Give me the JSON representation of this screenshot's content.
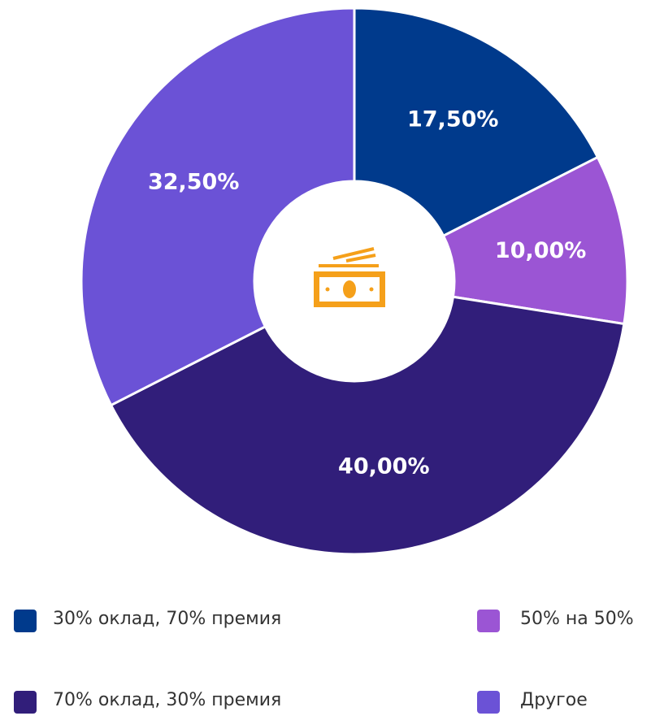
{
  "chart_data": {
    "type": "pie",
    "categories": [
      "30% оклад, 70% премия",
      "50% на 50%",
      "70% оклад, 30% премия",
      "Другое"
    ],
    "values": [
      17.5,
      10,
      40,
      32.5
    ],
    "value_labels": [
      "17,50%",
      "10,00%",
      "40,00%",
      "32,50%"
    ],
    "colors": [
      "#003a8c",
      "#9b55d4",
      "#311e7a",
      "#6b52d6"
    ],
    "donut": true
  }
}
